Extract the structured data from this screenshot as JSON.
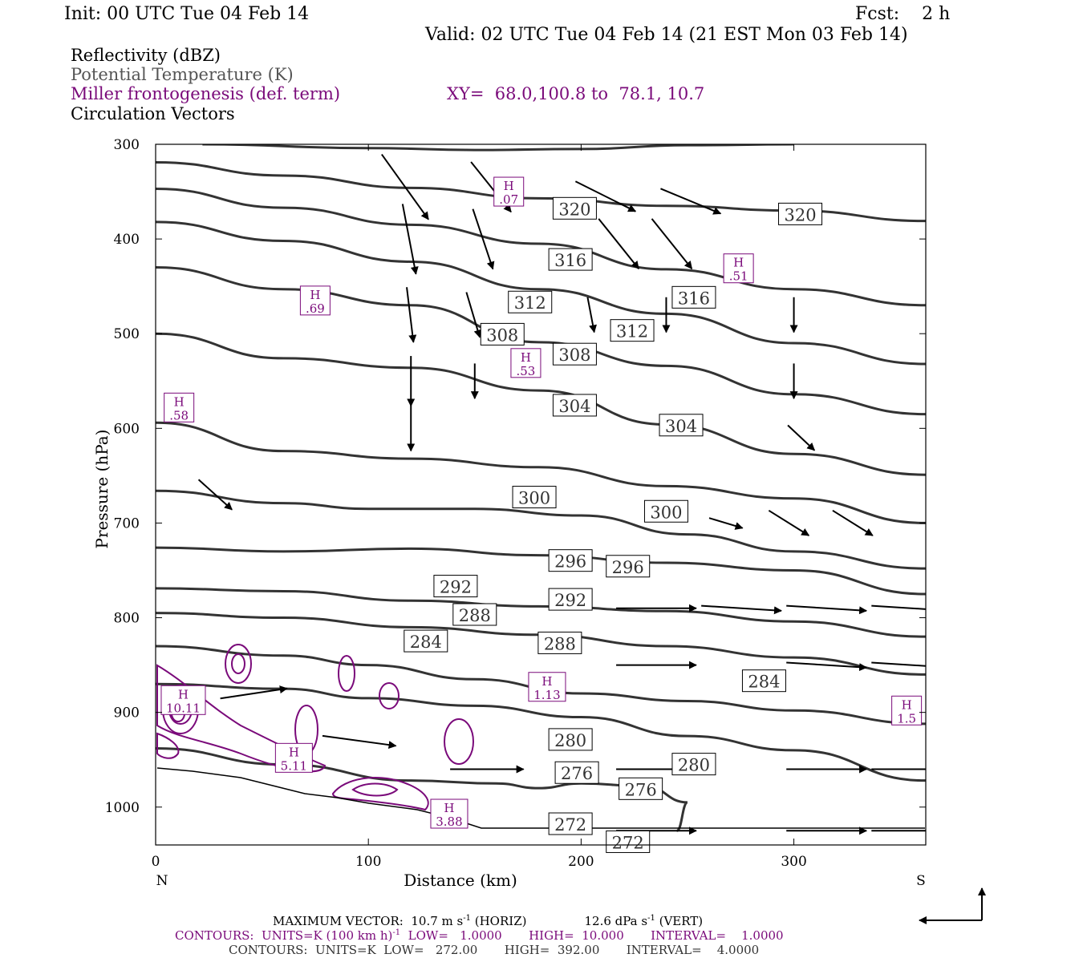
{
  "header": {
    "init": "Init: 00 UTC Tue 04 Feb 14",
    "fcst": "Fcst:    2 h",
    "valid": "Valid: 02 UTC Tue 04 Feb 14 (21 EST Mon 03 Feb 14)",
    "field1": "Reflectivity (dBZ)",
    "field2": "Potential Temperature (K)",
    "field3": "Miller frontogenesis (def. term)",
    "xy": "XY=  68.0,100.8 to  78.1, 10.7",
    "field4": "Circulation Vectors"
  },
  "colors": {
    "theta": "#333333",
    "fronto": "#7a0a7a",
    "vector": "#000000",
    "axes": "#000000"
  },
  "chart_data": {
    "type": "line",
    "xlabel": "Distance (km)",
    "ylabel": "Pressure (hPa)",
    "xlim": [
      0,
      362
    ],
    "ylim": [
      1040,
      300
    ],
    "x_ticks": [
      0,
      100,
      200,
      300
    ],
    "y_ticks": [
      300,
      400,
      500,
      600,
      700,
      800,
      900,
      1000
    ],
    "x_end_labels": {
      "left": "N",
      "right": "S"
    },
    "theta_isentropes": [
      {
        "level": 320,
        "points": [
          [
            22,
            300
          ],
          [
            100,
            304
          ],
          [
            150,
            306
          ],
          [
            200,
            305
          ],
          [
            250,
            301
          ],
          [
            300,
            300
          ]
        ]
      },
      {
        "level": 320,
        "points": [
          [
            0,
            319
          ],
          [
            60,
            333
          ],
          [
            120,
            346
          ],
          [
            180,
            357
          ],
          [
            240,
            365
          ],
          [
            300,
            370
          ],
          [
            362,
            381
          ]
        ]
      },
      {
        "level": 316,
        "points": [
          [
            0,
            347
          ],
          [
            60,
            367
          ],
          [
            120,
            385
          ],
          [
            180,
            405
          ],
          [
            240,
            432
          ],
          [
            300,
            453
          ],
          [
            362,
            470
          ]
        ]
      },
      {
        "level": 312,
        "points": [
          [
            0,
            382
          ],
          [
            60,
            402
          ],
          [
            120,
            424
          ],
          [
            180,
            453
          ],
          [
            240,
            479
          ],
          [
            300,
            510
          ],
          [
            362,
            532
          ]
        ]
      },
      {
        "level": 308,
        "points": [
          [
            0,
            430
          ],
          [
            60,
            453
          ],
          [
            120,
            470
          ],
          [
            180,
            509
          ],
          [
            240,
            534
          ],
          [
            300,
            564
          ],
          [
            362,
            585
          ]
        ]
      },
      {
        "level": 304,
        "points": [
          [
            0,
            500
          ],
          [
            60,
            526
          ],
          [
            120,
            536
          ],
          [
            180,
            560
          ],
          [
            240,
            596
          ],
          [
            300,
            627
          ],
          [
            362,
            649
          ]
        ]
      },
      {
        "level": 300,
        "points": [
          [
            0,
            594
          ],
          [
            60,
            624
          ],
          [
            120,
            632
          ],
          [
            180,
            641
          ],
          [
            240,
            661
          ],
          [
            300,
            674
          ],
          [
            362,
            700
          ]
        ]
      },
      {
        "level": 296,
        "points": [
          [
            0,
            666
          ],
          [
            60,
            679
          ],
          [
            100,
            685
          ],
          [
            150,
            685
          ],
          [
            200,
            692
          ],
          [
            250,
            712
          ],
          [
            300,
            730
          ],
          [
            362,
            748
          ]
        ]
      },
      {
        "level": 292,
        "points": [
          [
            0,
            726
          ],
          [
            60,
            730
          ],
          [
            120,
            727
          ],
          [
            180,
            734
          ],
          [
            240,
            742
          ],
          [
            300,
            750
          ],
          [
            362,
            775
          ]
        ]
      },
      {
        "level": 288,
        "points": [
          [
            0,
            769
          ],
          [
            60,
            772
          ],
          [
            120,
            782
          ],
          [
            180,
            788
          ],
          [
            240,
            793
          ],
          [
            300,
            804
          ],
          [
            362,
            820
          ]
        ]
      },
      {
        "level": 284,
        "points": [
          [
            0,
            795
          ],
          [
            60,
            800
          ],
          [
            120,
            810
          ],
          [
            180,
            818
          ],
          [
            240,
            830
          ],
          [
            300,
            842
          ],
          [
            362,
            860
          ]
        ]
      },
      {
        "level": 280,
        "points": [
          [
            0,
            830
          ],
          [
            60,
            840
          ],
          [
            100,
            850
          ],
          [
            150,
            865
          ],
          [
            200,
            880
          ],
          [
            250,
            888
          ],
          [
            300,
            898
          ],
          [
            362,
            912
          ]
        ]
      },
      {
        "level": 276,
        "points": [
          [
            0,
            870
          ],
          [
            60,
            875
          ],
          [
            100,
            885
          ],
          [
            150,
            893
          ],
          [
            200,
            905
          ],
          [
            250,
            925
          ],
          [
            300,
            940
          ],
          [
            362,
            972
          ]
        ]
      },
      {
        "level": 272,
        "points": [
          [
            0,
            938
          ],
          [
            60,
            955
          ],
          [
            120,
            972
          ],
          [
            160,
            975
          ],
          [
            180,
            980
          ],
          [
            200,
            975
          ],
          [
            230,
            978
          ],
          [
            250,
            995
          ],
          [
            245,
            1025
          ]
        ]
      }
    ],
    "contour_labels": [
      {
        "value": "320",
        "x": 197,
        "p": 368
      },
      {
        "value": "320",
        "x": 303,
        "p": 374
      },
      {
        "value": "316",
        "x": 195,
        "p": 422
      },
      {
        "value": "316",
        "x": 253,
        "p": 462
      },
      {
        "value": "312",
        "x": 176,
        "p": 467
      },
      {
        "value": "312",
        "x": 224,
        "p": 497
      },
      {
        "value": "308",
        "x": 163,
        "p": 501
      },
      {
        "value": "308",
        "x": 197,
        "p": 522
      },
      {
        "value": "304",
        "x": 197,
        "p": 576
      },
      {
        "value": "304",
        "x": 247,
        "p": 597
      },
      {
        "value": "300",
        "x": 178,
        "p": 673
      },
      {
        "value": "300",
        "x": 240,
        "p": 688
      },
      {
        "value": "296",
        "x": 195,
        "p": 740
      },
      {
        "value": "296",
        "x": 222,
        "p": 746
      },
      {
        "value": "292",
        "x": 141,
        "p": 767
      },
      {
        "value": "292",
        "x": 195,
        "p": 781
      },
      {
        "value": "288",
        "x": 150,
        "p": 797
      },
      {
        "value": "288",
        "x": 190,
        "p": 827
      },
      {
        "value": "284",
        "x": 127,
        "p": 825
      },
      {
        "value": "284",
        "x": 286,
        "p": 867
      },
      {
        "value": "280",
        "x": 195,
        "p": 929
      },
      {
        "value": "280",
        "x": 253,
        "p": 955
      },
      {
        "value": "276",
        "x": 198,
        "p": 964
      },
      {
        "value": "276",
        "x": 228,
        "p": 981
      },
      {
        "value": "272",
        "x": 195,
        "p": 1018
      },
      {
        "value": "272",
        "x": 222,
        "p": 1037
      }
    ],
    "fronto_maxima": [
      {
        "label": "H",
        "value": ".07",
        "x": 166,
        "p": 350
      },
      {
        "label": "H",
        "value": ".51",
        "x": 274,
        "p": 431
      },
      {
        "label": "H",
        "value": ".69",
        "x": 75,
        "p": 465
      },
      {
        "label": "H",
        "value": ".53",
        "x": 174,
        "p": 531
      },
      {
        "label": "H",
        "value": ".58",
        "x": 11,
        "p": 578
      },
      {
        "label": "H",
        "value": "10.11",
        "x": 13,
        "p": 887
      },
      {
        "label": "H",
        "value": "1.13",
        "x": 184,
        "p": 873
      },
      {
        "label": "H",
        "value": "5.11",
        "x": 65,
        "p": 948
      },
      {
        "label": "H",
        "value": "3.88",
        "x": 138,
        "p": 1007
      },
      {
        "label": "H",
        "value": "1.5",
        "x": 353,
        "p": 898
      }
    ],
    "circulation_vectors": [
      {
        "x": 120,
        "p": 345,
        "u": 14,
        "w": 26
      },
      {
        "x": 160,
        "p": 345,
        "u": 12,
        "w": 20
      },
      {
        "x": 215,
        "p": 355,
        "u": 18,
        "w": 12
      },
      {
        "x": 255,
        "p": 360,
        "u": 18,
        "w": 10
      },
      {
        "x": 120,
        "p": 400,
        "u": 4,
        "w": 28
      },
      {
        "x": 155,
        "p": 400,
        "u": 6,
        "w": 24
      },
      {
        "x": 220,
        "p": 405,
        "u": 12,
        "w": 20
      },
      {
        "x": 245,
        "p": 405,
        "u": 12,
        "w": 20
      },
      {
        "x": 120,
        "p": 480,
        "u": 2,
        "w": 22
      },
      {
        "x": 150,
        "p": 480,
        "u": 4,
        "w": 18
      },
      {
        "x": 205,
        "p": 480,
        "u": 2,
        "w": 14
      },
      {
        "x": 240,
        "p": 480,
        "u": 0,
        "w": 14
      },
      {
        "x": 300,
        "p": 480,
        "u": 0,
        "w": 14
      },
      {
        "x": 120,
        "p": 550,
        "u": 0,
        "w": 20
      },
      {
        "x": 150,
        "p": 550,
        "u": 0,
        "w": 14
      },
      {
        "x": 300,
        "p": 550,
        "u": 0,
        "w": 14
      },
      {
        "x": 120,
        "p": 600,
        "u": 0,
        "w": 18
      },
      {
        "x": 305,
        "p": 610,
        "u": 8,
        "w": 10
      },
      {
        "x": 30,
        "p": 670,
        "u": 10,
        "w": 12
      },
      {
        "x": 270,
        "p": 700,
        "u": 10,
        "w": 4
      },
      {
        "x": 300,
        "p": 700,
        "u": 12,
        "w": 10
      },
      {
        "x": 330,
        "p": 700,
        "u": 12,
        "w": 10
      },
      {
        "x": 240,
        "p": 790,
        "u": 24,
        "w": 0
      },
      {
        "x": 280,
        "p": 790,
        "u": 24,
        "w": 2
      },
      {
        "x": 320,
        "p": 790,
        "u": 24,
        "w": 2
      },
      {
        "x": 360,
        "p": 790,
        "u": 24,
        "w": 2
      },
      {
        "x": 240,
        "p": 850,
        "u": 24,
        "w": 0
      },
      {
        "x": 320,
        "p": 850,
        "u": 24,
        "w": 2
      },
      {
        "x": 360,
        "p": 850,
        "u": 24,
        "w": 2
      },
      {
        "x": 50,
        "p": 880,
        "u": 20,
        "w": -4
      },
      {
        "x": 100,
        "p": 930,
        "u": 22,
        "w": 4
      },
      {
        "x": 160,
        "p": 960,
        "u": 22,
        "w": 0
      },
      {
        "x": 240,
        "p": 960,
        "u": 24,
        "w": 0
      },
      {
        "x": 320,
        "p": 960,
        "u": 24,
        "w": 0
      },
      {
        "x": 360,
        "p": 960,
        "u": 24,
        "w": 0
      },
      {
        "x": 240,
        "p": 1025,
        "u": 24,
        "w": 0
      },
      {
        "x": 320,
        "p": 1025,
        "u": 24,
        "w": 0
      },
      {
        "x": 360,
        "p": 1025,
        "u": 24,
        "w": 0
      }
    ]
  },
  "footer": {
    "line1a": "MAXIMUM VECTOR:  10.7 m s",
    "line1b": "-1",
    "line1c": " (HORIZ)",
    "line1d": "12.6 dPa s",
    "line1e": "-1",
    "line1f": " (VERT)",
    "line2a": "CONTOURS:  UNITS=K (100 km h)",
    "line2b": "-1",
    "line2c": "  LOW=   1.0000       HIGH=  10.000       INTERVAL=    1.0000",
    "line3": "CONTOURS:  UNITS=K  LOW=   272.00       HIGH=  392.00       INTERVAL=    4.0000"
  }
}
